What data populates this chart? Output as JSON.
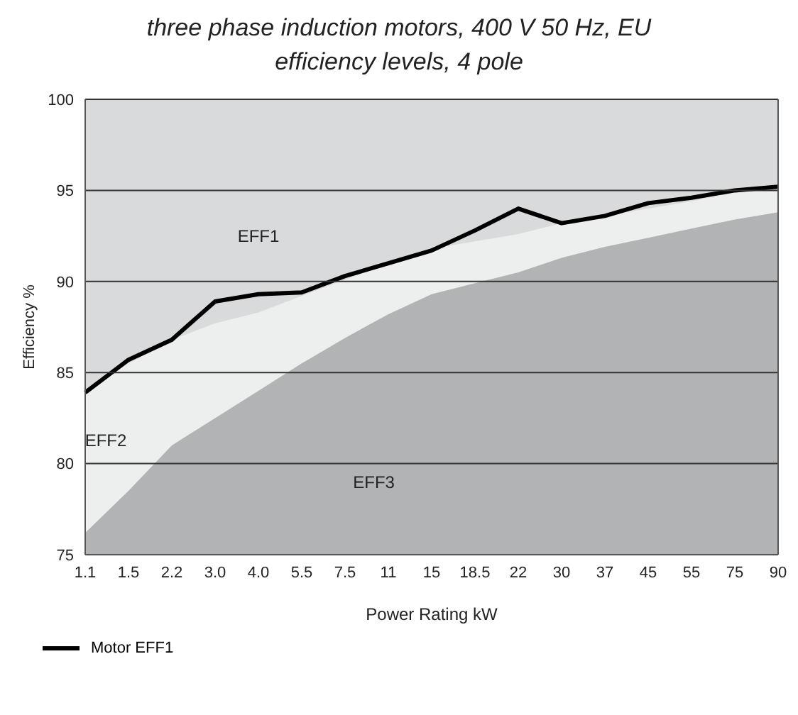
{
  "chart_data": {
    "type": "area",
    "title": "three phase induction motors, 400 V 50 Hz, EU efficiency levels, 4 pole",
    "xlabel": "Power Rating kW",
    "ylabel": "Efficiency %",
    "categories": [
      "1.1",
      "1.5",
      "2.2",
      "3.0",
      "4.0",
      "5.5",
      "7.5",
      "11",
      "15",
      "18.5",
      "22",
      "30",
      "37",
      "45",
      "55",
      "75",
      "90"
    ],
    "ylim": [
      75,
      100
    ],
    "yticks": [
      75,
      80,
      85,
      90,
      95,
      100
    ],
    "grid": "y",
    "legend": "bottom left",
    "annotations": [
      "EFF1"
    ],
    "series": [
      {
        "name": "EFF2",
        "color": "#edeeee",
        "values": [
          84.0,
          85.5,
          86.8,
          87.7,
          88.3,
          89.2,
          90.1,
          91.0,
          91.8,
          92.2,
          92.6,
          93.2,
          93.6,
          94.0,
          94.4,
          94.9,
          95.2
        ]
      },
      {
        "name": "EFF3",
        "color": "#b2b3b5",
        "values": [
          76.2,
          78.5,
          81.0,
          82.5,
          84.0,
          85.5,
          86.9,
          88.2,
          89.3,
          89.9,
          90.5,
          91.3,
          91.9,
          92.4,
          92.9,
          93.4,
          93.8
        ]
      },
      {
        "name": "Motor EFF1",
        "type": "line",
        "color": "#000000",
        "values": [
          83.9,
          85.7,
          86.8,
          88.9,
          89.3,
          89.4,
          90.3,
          91.0,
          91.7,
          92.8,
          94.0,
          93.2,
          93.6,
          94.3,
          94.6,
          95.0,
          95.2
        ]
      }
    ]
  }
}
